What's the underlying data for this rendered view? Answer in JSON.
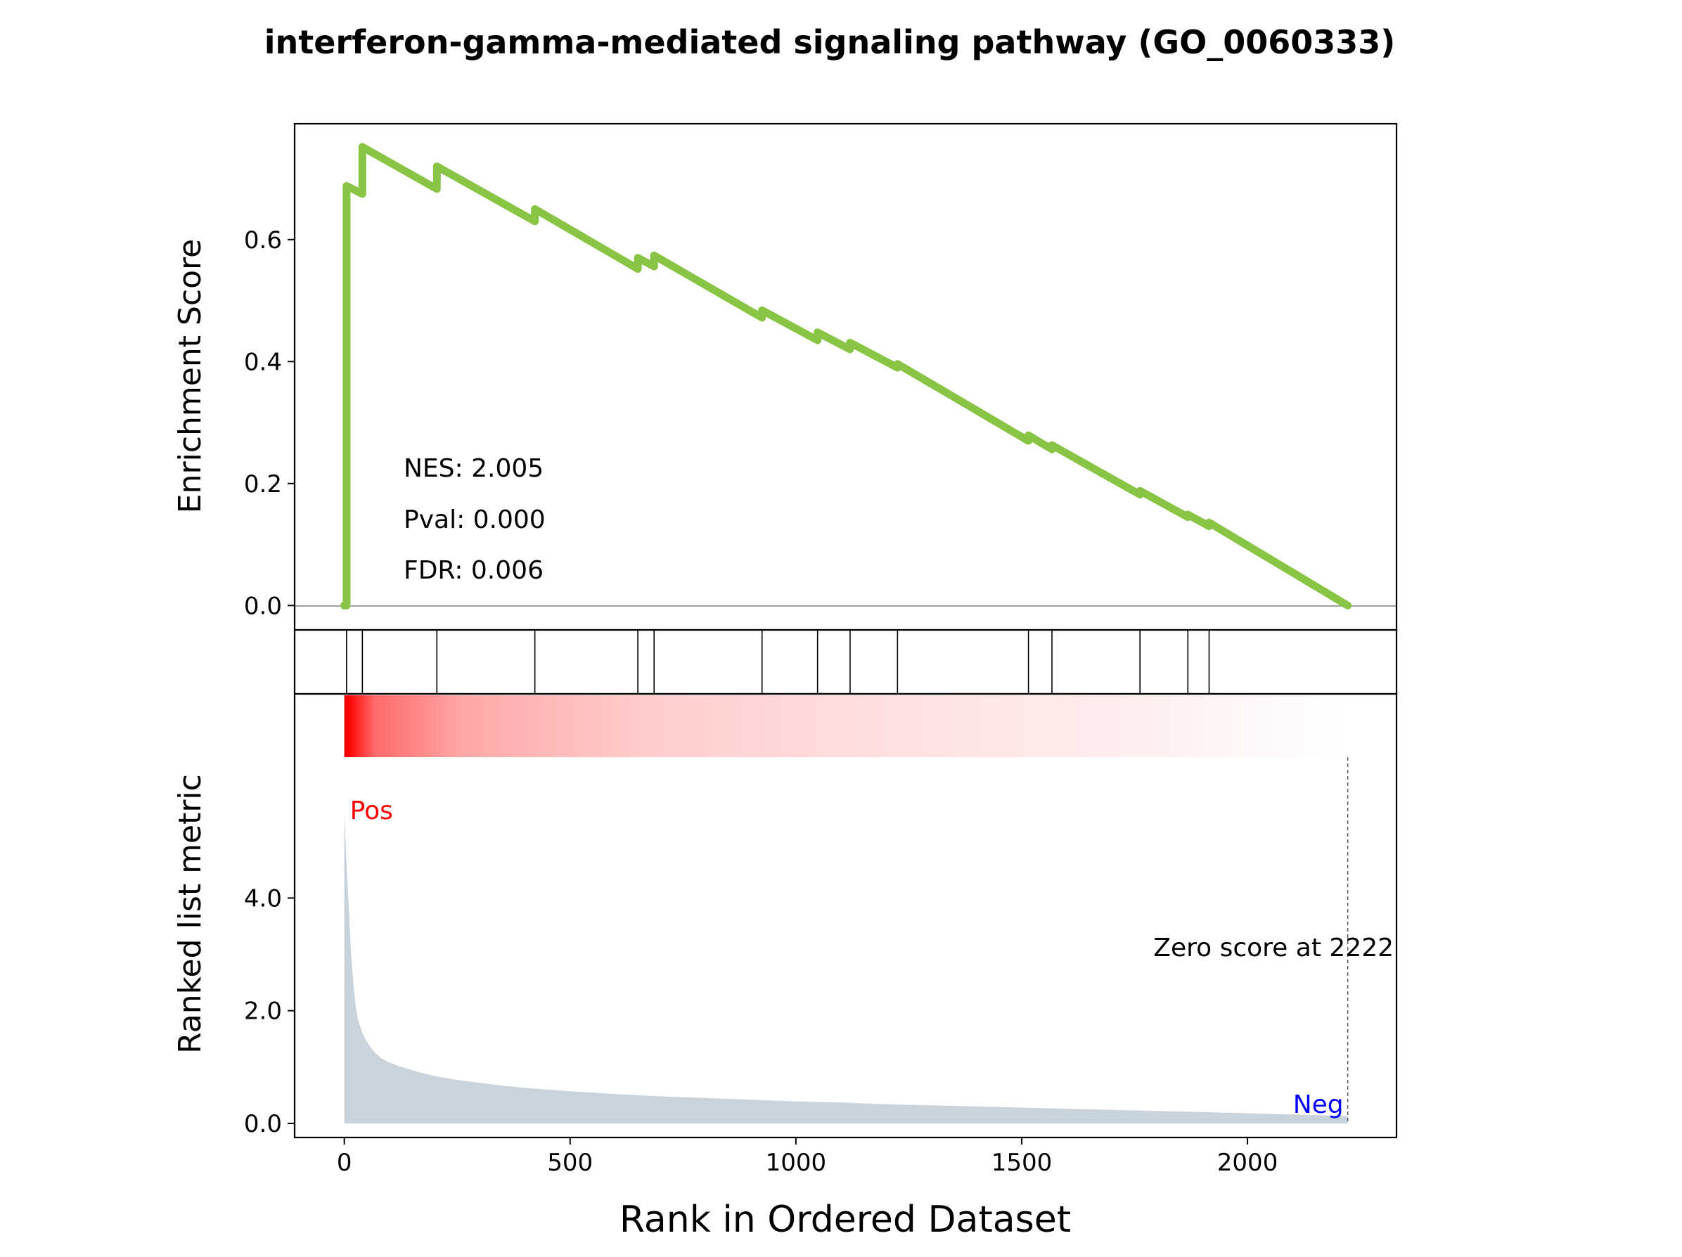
{
  "chart_data": {
    "type": "line",
    "title": "interferon-gamma-mediated signaling pathway (GO_0060333)",
    "xlabel": "Rank in Ordered Dataset",
    "xlim": [
      -110,
      2330
    ],
    "x_ticks": [
      0,
      500,
      1000,
      1500,
      2000
    ],
    "x_tick_labels": [
      "0",
      "500",
      "1000",
      "1500",
      "2000"
    ],
    "enrichment": {
      "ylabel": "Enrichment Score",
      "ylim": [
        -0.04,
        0.79
      ],
      "y_ticks": [
        0.0,
        0.2,
        0.4,
        0.6
      ],
      "y_tick_labels": [
        "0.0",
        "0.2",
        "0.4",
        "0.6"
      ],
      "line_color": "#88c544",
      "x": [
        0,
        5,
        5,
        40,
        40,
        205,
        205,
        422,
        422,
        650,
        650,
        686,
        686,
        925,
        925,
        1048,
        1048,
        1120,
        1120,
        1225,
        1225,
        1515,
        1515,
        1567,
        1567,
        1762,
        1762,
        1868,
        1868,
        1915,
        1915,
        2222
      ],
      "y": [
        0.0,
        0.0,
        0.688,
        0.675,
        0.752,
        0.683,
        0.72,
        0.63,
        0.65,
        0.552,
        0.57,
        0.556,
        0.574,
        0.472,
        0.484,
        0.435,
        0.448,
        0.42,
        0.431,
        0.39,
        0.396,
        0.27,
        0.279,
        0.256,
        0.263,
        0.182,
        0.188,
        0.145,
        0.149,
        0.13,
        0.136,
        0.0
      ]
    },
    "stats": [
      "NES: 2.005",
      "Pval: 0.000",
      "FDR: 0.006"
    ],
    "hits": [
      5,
      40,
      205,
      422,
      650,
      686,
      925,
      1048,
      1120,
      1225,
      1515,
      1567,
      1762,
      1868,
      1915
    ],
    "heatmap": {
      "color_high": "#ff0000",
      "color_low": "#ffffff",
      "x_range": [
        0,
        2222
      ]
    },
    "ranked_metric": {
      "ylabel": "Ranked list metric",
      "ylim": [
        -0.25,
        6.5
      ],
      "y_ticks": [
        0.0,
        2.0,
        4.0
      ],
      "y_tick_labels": [
        "0.0",
        "2.0",
        "4.0"
      ],
      "fill_color": "#c9d3dc",
      "x": [
        0,
        5,
        10,
        15,
        20,
        25,
        30,
        40,
        50,
        60,
        70,
        80,
        90,
        100,
        120,
        140,
        160,
        180,
        200,
        250,
        300,
        350,
        400,
        500,
        600,
        700,
        800,
        900,
        1000,
        1100,
        1200,
        1300,
        1400,
        1500,
        1600,
        1700,
        1800,
        1900,
        2000,
        2100,
        2222
      ],
      "y": [
        5.5,
        4.6,
        3.8,
        3.0,
        2.5,
        2.1,
        1.85,
        1.6,
        1.45,
        1.33,
        1.24,
        1.17,
        1.12,
        1.08,
        1.02,
        0.97,
        0.92,
        0.88,
        0.84,
        0.77,
        0.72,
        0.67,
        0.63,
        0.57,
        0.52,
        0.48,
        0.45,
        0.42,
        0.39,
        0.37,
        0.34,
        0.32,
        0.3,
        0.28,
        0.26,
        0.24,
        0.22,
        0.2,
        0.18,
        0.16,
        0.13
      ],
      "pos_label": "Pos",
      "pos_color": "#ff0000",
      "neg_label": "Neg",
      "neg_color": "#0000ff",
      "zero_score_label": "Zero score at 2222",
      "zero_score_at": 2222
    }
  }
}
